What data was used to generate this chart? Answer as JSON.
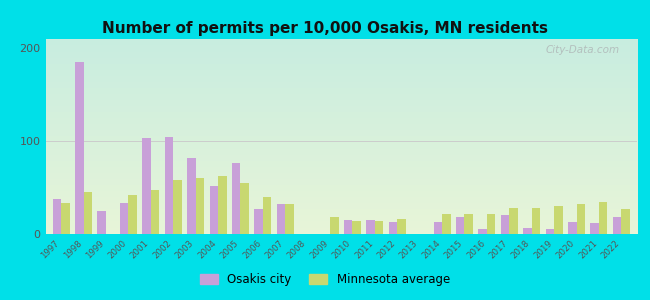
{
  "title": "Number of permits per 10,000 Osakis, MN residents",
  "years": [
    1997,
    1998,
    1999,
    2000,
    2001,
    2002,
    2003,
    2004,
    2005,
    2006,
    2007,
    2008,
    2009,
    2010,
    2011,
    2012,
    2013,
    2014,
    2015,
    2016,
    2017,
    2018,
    2019,
    2020,
    2021,
    2022
  ],
  "osakis": [
    38,
    185,
    25,
    33,
    103,
    105,
    82,
    52,
    77,
    27,
    32,
    0,
    0,
    15,
    15,
    13,
    0,
    13,
    18,
    5,
    20,
    7,
    5,
    13,
    12,
    18
  ],
  "mn_avg": [
    33,
    45,
    0,
    42,
    47,
    58,
    60,
    62,
    55,
    40,
    32,
    0,
    18,
    14,
    14,
    16,
    0,
    22,
    22,
    22,
    28,
    28,
    30,
    32,
    35,
    27
  ],
  "osakis_color": "#c8a0d8",
  "mn_avg_color": "#c8d870",
  "bg_outer": "#00e0e8",
  "bg_plot_top": "#c8ede0",
  "bg_plot_bottom": "#e8f5d8",
  "ylim": [
    0,
    210
  ],
  "yticks": [
    0,
    100,
    200
  ],
  "bar_width": 0.38,
  "legend_osakis": "Osakis city",
  "legend_mn": "Minnesota average",
  "watermark": "City-Data.com"
}
